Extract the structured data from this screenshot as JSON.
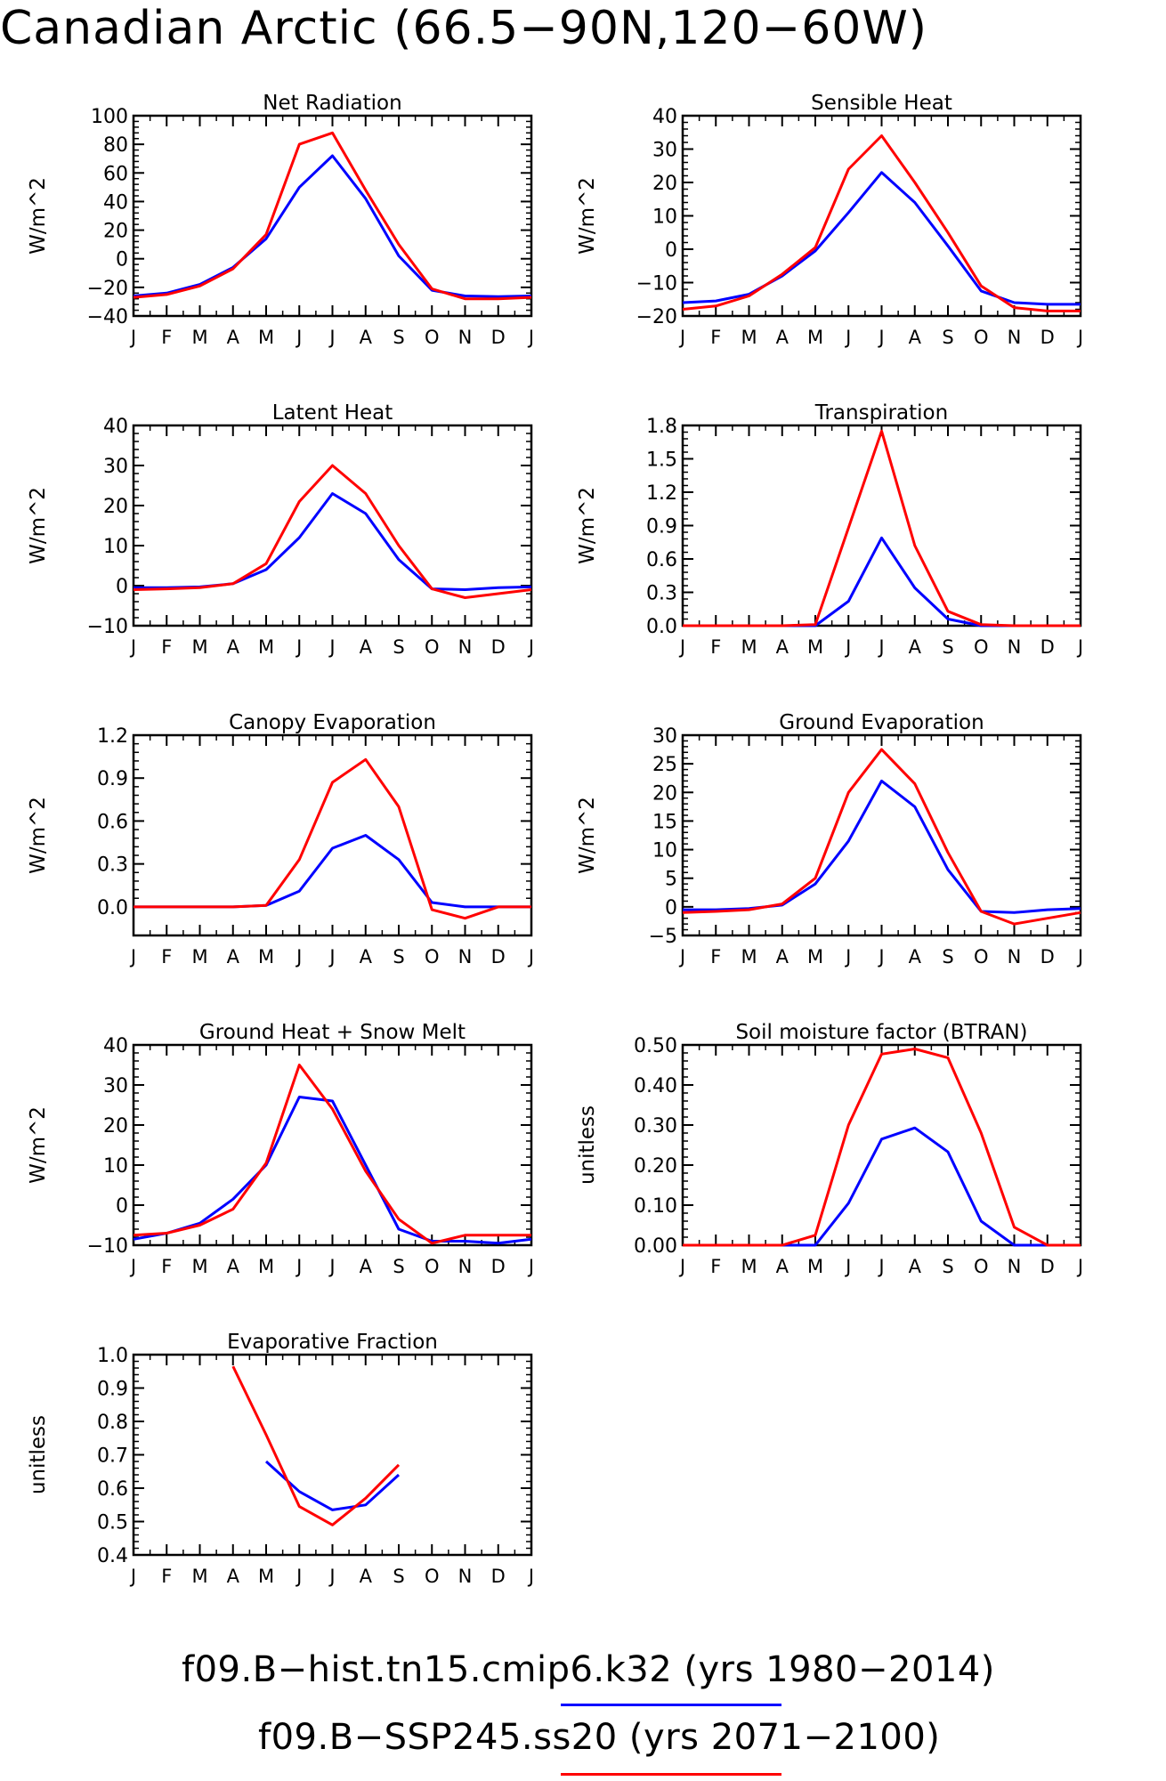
{
  "title": "Canadian Arctic (66.5−90N,120−60W)",
  "legend": [
    {
      "label": "f09.B−hist.tn15.cmip6.k32 (yrs 1980−2014)",
      "color": "#0000ff"
    },
    {
      "label": "f09.B−SSP245.ss20 (yrs 2071−2100)",
      "color": "#ff0000"
    }
  ],
  "chart_data": [
    {
      "type": "line",
      "title": "Net Radiation",
      "ylabel": "W/m^2",
      "categories": [
        "J",
        "F",
        "M",
        "A",
        "M",
        "J",
        "J",
        "A",
        "S",
        "O",
        "N",
        "D",
        "J"
      ],
      "ylim": [
        -40,
        100
      ],
      "yticks": [
        -40,
        -20,
        0,
        20,
        40,
        60,
        80,
        100
      ],
      "ytick_labels": [
        "−40",
        "−20",
        "0",
        "20",
        "40",
        "60",
        "80",
        "100"
      ],
      "series": [
        {
          "color": "#0000ff",
          "values": [
            -26,
            -24,
            -18,
            -6,
            14,
            50,
            72,
            42,
            2,
            -22,
            -26,
            -26.5,
            -26
          ]
        },
        {
          "color": "#ff0000",
          "values": [
            -27,
            -25,
            -19,
            -7,
            17,
            80,
            88,
            48,
            10,
            -21,
            -28,
            -28,
            -27
          ]
        }
      ]
    },
    {
      "type": "line",
      "title": "Sensible Heat",
      "ylabel": "W/m^2",
      "categories": [
        "J",
        "F",
        "M",
        "A",
        "M",
        "J",
        "J",
        "A",
        "S",
        "O",
        "N",
        "D",
        "J"
      ],
      "ylim": [
        -20,
        40
      ],
      "yticks": [
        -20,
        -10,
        0,
        10,
        20,
        30,
        40
      ],
      "ytick_labels": [
        "−20",
        "−10",
        "0",
        "10",
        "20",
        "30",
        "40"
      ],
      "series": [
        {
          "color": "#0000ff",
          "values": [
            -16,
            -15.5,
            -13.5,
            -8,
            -0.5,
            11,
            23,
            14,
            1,
            -12.5,
            -16,
            -16.5,
            -16.5
          ]
        },
        {
          "color": "#ff0000",
          "values": [
            -18,
            -17,
            -14,
            -7.5,
            0.5,
            24,
            34,
            20,
            5,
            -11,
            -17.5,
            -18.5,
            -18.5
          ]
        }
      ]
    },
    {
      "type": "line",
      "title": "Latent Heat",
      "ylabel": "W/m^2",
      "categories": [
        "J",
        "F",
        "M",
        "A",
        "M",
        "J",
        "J",
        "A",
        "S",
        "O",
        "N",
        "D",
        "J"
      ],
      "ylim": [
        -10,
        40
      ],
      "yticks": [
        -10,
        0,
        10,
        20,
        30,
        40
      ],
      "ytick_labels": [
        "−10",
        "0",
        "10",
        "20",
        "30",
        "40"
      ],
      "series": [
        {
          "color": "#0000ff",
          "values": [
            -0.5,
            -0.5,
            -0.3,
            0.5,
            4,
            12,
            23,
            18,
            6.5,
            -0.8,
            -1,
            -0.5,
            -0.3
          ]
        },
        {
          "color": "#ff0000",
          "values": [
            -1,
            -0.8,
            -0.5,
            0.5,
            5.5,
            21,
            30,
            23,
            10,
            -0.8,
            -3,
            -2,
            -1
          ]
        }
      ]
    },
    {
      "type": "line",
      "title": "Transpiration",
      "ylabel": "W/m^2",
      "categories": [
        "J",
        "F",
        "M",
        "A",
        "M",
        "J",
        "J",
        "A",
        "S",
        "O",
        "N",
        "D",
        "J"
      ],
      "ylim": [
        0,
        1.8
      ],
      "yticks": [
        0,
        0.3,
        0.6,
        0.9,
        1.2,
        1.5,
        1.8
      ],
      "ytick_labels": [
        "0.0",
        "0.3",
        "0.6",
        "0.9",
        "1.2",
        "1.5",
        "1.8"
      ],
      "series": [
        {
          "color": "#0000ff",
          "values": [
            0,
            0,
            0,
            0,
            0,
            0.22,
            0.79,
            0.34,
            0.06,
            0,
            0,
            0,
            0
          ]
        },
        {
          "color": "#ff0000",
          "values": [
            0,
            0,
            0,
            0,
            0.01,
            0.88,
            1.75,
            0.72,
            0.13,
            0.01,
            0,
            0,
            0
          ]
        }
      ]
    },
    {
      "type": "line",
      "title": "Canopy Evaporation",
      "ylabel": "W/m^2",
      "categories": [
        "J",
        "F",
        "M",
        "A",
        "M",
        "J",
        "J",
        "A",
        "S",
        "O",
        "N",
        "D",
        "J"
      ],
      "ylim": [
        -0.2,
        1.2
      ],
      "yticks": [
        0,
        0.3,
        0.6,
        0.9,
        1.2
      ],
      "ytick_labels": [
        "0.0",
        "0.3",
        "0.6",
        "0.9",
        "1.2"
      ],
      "series": [
        {
          "color": "#0000ff",
          "values": [
            0,
            0,
            0,
            0,
            0.01,
            0.11,
            0.41,
            0.5,
            0.33,
            0.03,
            0,
            0,
            0
          ]
        },
        {
          "color": "#ff0000",
          "values": [
            0,
            0,
            0,
            0,
            0.01,
            0.33,
            0.87,
            1.03,
            0.7,
            -0.02,
            -0.08,
            0,
            0
          ]
        }
      ]
    },
    {
      "type": "line",
      "title": "Ground Evaporation",
      "ylabel": "W/m^2",
      "categories": [
        "J",
        "F",
        "M",
        "A",
        "M",
        "J",
        "J",
        "A",
        "S",
        "O",
        "N",
        "D",
        "J"
      ],
      "ylim": [
        -5,
        30
      ],
      "yticks": [
        -5,
        0,
        5,
        10,
        15,
        20,
        25,
        30
      ],
      "ytick_labels": [
        "−5",
        "0",
        "5",
        "10",
        "15",
        "20",
        "25",
        "30"
      ],
      "series": [
        {
          "color": "#0000ff",
          "values": [
            -0.5,
            -0.5,
            -0.3,
            0.3,
            4,
            11.5,
            22,
            17.5,
            6.5,
            -0.8,
            -1,
            -0.5,
            -0.3
          ]
        },
        {
          "color": "#ff0000",
          "values": [
            -1,
            -0.8,
            -0.5,
            0.5,
            5,
            20,
            27.5,
            21.5,
            9.5,
            -0.8,
            -3,
            -2,
            -1
          ]
        }
      ]
    },
    {
      "type": "line",
      "title": "Ground Heat + Snow Melt",
      "ylabel": "W/m^2",
      "categories": [
        "J",
        "F",
        "M",
        "A",
        "M",
        "J",
        "J",
        "A",
        "S",
        "O",
        "N",
        "D",
        "J"
      ],
      "ylim": [
        -10,
        40
      ],
      "yticks": [
        -10,
        0,
        10,
        20,
        30,
        40
      ],
      "ytick_labels": [
        "−10",
        "0",
        "10",
        "20",
        "30",
        "40"
      ],
      "series": [
        {
          "color": "#0000ff",
          "values": [
            -8.5,
            -7,
            -4.5,
            1.5,
            10,
            27,
            26,
            10,
            -6,
            -9,
            -9,
            -9.5,
            -8.5
          ]
        },
        {
          "color": "#ff0000",
          "values": [
            -7.5,
            -7,
            -5,
            -1,
            10.5,
            35,
            24,
            8.5,
            -3.5,
            -9.5,
            -7.5,
            -7.5,
            -7.5
          ]
        }
      ]
    },
    {
      "type": "line",
      "title": "Soil moisture factor (BTRAN)",
      "ylabel": "unitless",
      "categories": [
        "J",
        "F",
        "M",
        "A",
        "M",
        "J",
        "J",
        "A",
        "S",
        "O",
        "N",
        "D",
        "J"
      ],
      "ylim": [
        0,
        0.5
      ],
      "yticks": [
        0,
        0.1,
        0.2,
        0.3,
        0.4,
        0.5
      ],
      "ytick_labels": [
        "0.00",
        "0.10",
        "0.20",
        "0.30",
        "0.40",
        "0.50"
      ],
      "series": [
        {
          "color": "#0000ff",
          "values": [
            0,
            0,
            0,
            0,
            0,
            0.105,
            0.265,
            0.293,
            0.233,
            0.06,
            0,
            0,
            0
          ]
        },
        {
          "color": "#ff0000",
          "values": [
            0,
            0,
            0,
            0,
            0.025,
            0.3,
            0.477,
            0.49,
            0.468,
            0.28,
            0.045,
            0,
            0
          ]
        }
      ]
    },
    {
      "type": "line",
      "title": "Evaporative Fraction",
      "ylabel": "unitless",
      "categories": [
        "J",
        "F",
        "M",
        "A",
        "M",
        "J",
        "J",
        "A",
        "S",
        "O",
        "N",
        "D",
        "J"
      ],
      "ylim": [
        0.4,
        1.0
      ],
      "yticks": [
        0.4,
        0.5,
        0.6,
        0.7,
        0.8,
        0.9,
        1.0
      ],
      "ytick_labels": [
        "0.4",
        "0.5",
        "0.6",
        "0.7",
        "0.8",
        "0.9",
        "1.0"
      ],
      "series": [
        {
          "color": "#0000ff",
          "values": [
            null,
            null,
            null,
            null,
            0.68,
            0.59,
            0.535,
            0.55,
            0.64,
            null,
            null,
            null,
            null
          ]
        },
        {
          "color": "#ff0000",
          "values": [
            null,
            null,
            null,
            0.965,
            0.76,
            0.545,
            0.49,
            0.57,
            0.67,
            null,
            null,
            null,
            null
          ]
        }
      ]
    }
  ]
}
